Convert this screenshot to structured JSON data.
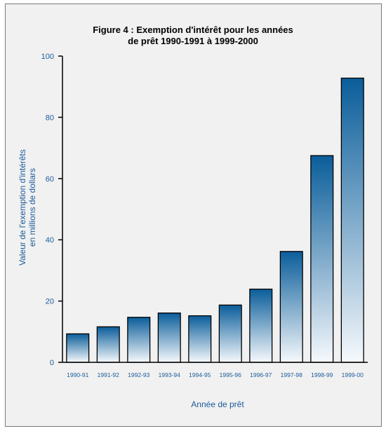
{
  "chart_data": {
    "type": "bar",
    "title_line1": "Figure 4 : Exemption d'intérêt pour les années",
    "title_line2": "de prêt 1990-1991 à 1999-2000",
    "xlabel": "Année de prêt",
    "ylabel_line1": "Valeur de l'exemption d'intérêts",
    "ylabel_line2": "en millions de dollars",
    "categories": [
      "1990-91",
      "1991-92",
      "1992-93",
      "1993-94",
      "1994-95",
      "1995-96",
      "1996-97",
      "1997-98",
      "1998-99",
      "1999-00"
    ],
    "values": [
      9.3,
      11.6,
      14.7,
      16.1,
      15.2,
      18.7,
      23.9,
      36.2,
      67.5,
      92.8
    ],
    "ylim": [
      0,
      100
    ],
    "yticks": [
      0,
      20,
      40,
      60,
      80,
      100
    ],
    "grid": false,
    "colors": {
      "bar_top": "#0a5d9a",
      "bar_bottom": "#f6f9fc",
      "text": "#1a5b9a",
      "background": "#f1f1f1"
    }
  }
}
